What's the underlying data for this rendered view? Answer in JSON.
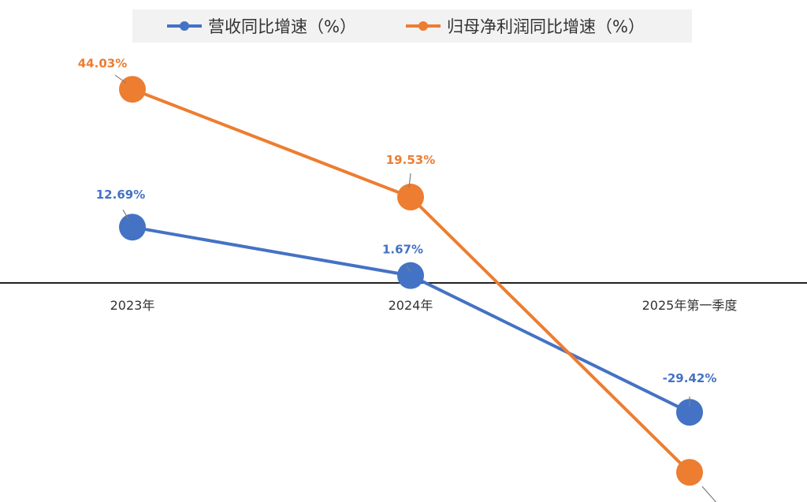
{
  "chart_data": {
    "type": "line",
    "categories": [
      "2023年",
      "2024年",
      "2025年第一季度"
    ],
    "series": [
      {
        "name": "营收同比增速（%）",
        "values": [
          12.69,
          1.67,
          -29.42
        ],
        "labels": [
          "12.69%",
          "1.67%",
          "-29.42%"
        ],
        "color": "#4472C4"
      },
      {
        "name": "归母净利润同比增速（%）",
        "values": [
          44.03,
          19.53,
          -43.07
        ],
        "labels": [
          "44.03%",
          "19.53%",
          "-43.07%"
        ],
        "color": "#ED7D31"
      }
    ],
    "ylim": [
      -50,
      50
    ],
    "grid": false,
    "legend_position": "top",
    "axis_line_color": "#222222"
  }
}
